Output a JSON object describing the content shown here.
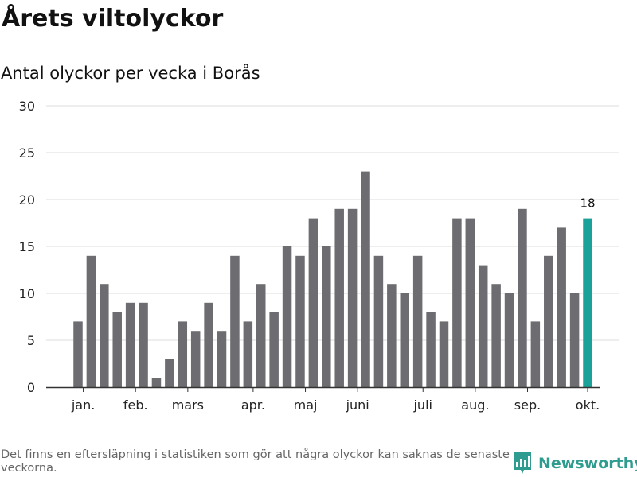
{
  "header": {
    "title": "Årets viltolyckor",
    "subtitle": "Antal olyckor per vecka i Borås"
  },
  "chart_data": {
    "type": "bar",
    "title": "Årets viltolyckor",
    "subtitle": "Antal olyckor per vecka i Borås",
    "xlabel": "",
    "ylabel": "",
    "ylim": [
      0,
      30
    ],
    "yticks": [
      0,
      5,
      10,
      15,
      20,
      25,
      30
    ],
    "grid": true,
    "weeks": [
      1,
      2,
      3,
      4,
      5,
      6,
      7,
      8,
      9,
      10,
      11,
      12,
      13,
      14,
      15,
      16,
      17,
      18,
      19,
      20,
      21,
      22,
      23,
      24,
      25,
      26,
      27,
      28,
      29,
      30,
      31,
      32,
      33,
      34,
      35,
      36,
      37,
      38,
      39,
      40
    ],
    "values": [
      7,
      14,
      11,
      8,
      9,
      9,
      1,
      3,
      7,
      6,
      9,
      6,
      14,
      7,
      11,
      8,
      15,
      14,
      18,
      15,
      19,
      19,
      23,
      14,
      11,
      10,
      14,
      8,
      7,
      18,
      18,
      13,
      11,
      10,
      19,
      7,
      14,
      17,
      10,
      18
    ],
    "highlight_index": 39,
    "highlight_label": "18",
    "month_ticks": [
      {
        "label": "jan.",
        "week": 1.4
      },
      {
        "label": "feb.",
        "week": 5.4
      },
      {
        "label": "mars",
        "week": 9.4
      },
      {
        "label": "apr.",
        "week": 14.4
      },
      {
        "label": "maj",
        "week": 18.4
      },
      {
        "label": "juni",
        "week": 22.4
      },
      {
        "label": "juli",
        "week": 27.4
      },
      {
        "label": "aug.",
        "week": 31.4
      },
      {
        "label": "sep.",
        "week": 35.4
      },
      {
        "label": "okt.",
        "week": 40.0
      }
    ],
    "colors": {
      "bar": "#6d6d71",
      "highlight": "#1aa199",
      "grid": "#dddddd",
      "axis": "#333333"
    }
  },
  "footer": {
    "note": "Det finns en eftersläpning i statistiken som gör att några olyckor kan saknas de senaste veckorna.",
    "brand": "Newsworthy",
    "brand_icon": "bar-chart-logo-icon",
    "brand_color": "#2e9c8f"
  }
}
